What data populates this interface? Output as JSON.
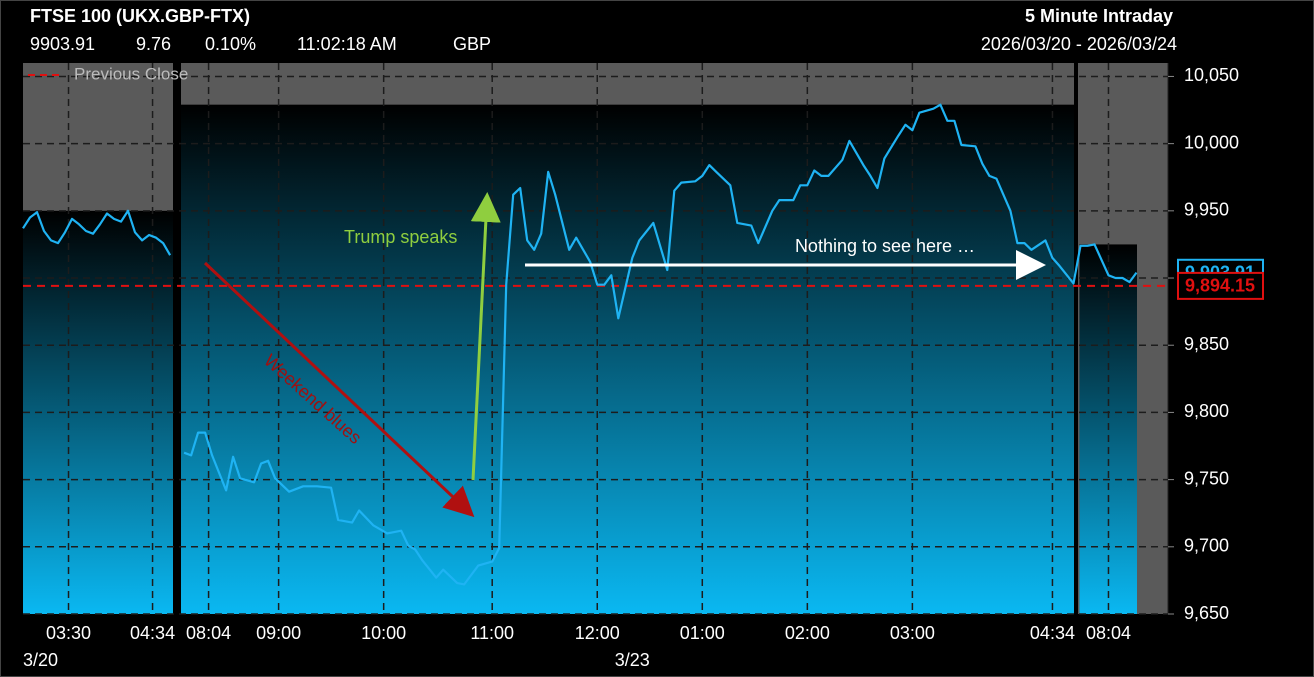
{
  "chart_data": {
    "type": "line",
    "title": "FTSE 100 (UKX.GBP-FTX)",
    "subtitle": "5 Minute Intraday",
    "date_range": "2026/03/20 - 2026/03/24",
    "last_price": {
      "value": 9903.91,
      "label": "9,903.91"
    },
    "change": 9.76,
    "change_pct": {
      "value": 0.1,
      "label": "0.10%"
    },
    "time": "11:02:18 AM",
    "currency": "GBP",
    "color": "#1fb3f3",
    "previous_close": {
      "name": "Previous Close",
      "value": 9894.15,
      "label": "9,894.15",
      "color": "#e01010"
    },
    "x": [
      0,
      1,
      2,
      3,
      4,
      5,
      6,
      7,
      8,
      9,
      10,
      11,
      12,
      13,
      14,
      15,
      16,
      17,
      18,
      19,
      20,
      21,
      22,
      23,
      24,
      25,
      26,
      27,
      29,
      30,
      31,
      33,
      34,
      35,
      36,
      38,
      40,
      42,
      44,
      45,
      47,
      48,
      50,
      52,
      54,
      55,
      56,
      57,
      59,
      60,
      62,
      63,
      65,
      67,
      68,
      69,
      70,
      71,
      72,
      73,
      74,
      75,
      76,
      78,
      79,
      80,
      81,
      82,
      83,
      84,
      85,
      87,
      88,
      90,
      92,
      93,
      94,
      96,
      97,
      98,
      99,
      101,
      102,
      104,
      105,
      107,
      108,
      110,
      111,
      112,
      113,
      114,
      115,
      117,
      118,
      120,
      121,
      122,
      123,
      125,
      126,
      127,
      128,
      130,
      131,
      132,
      133,
      134,
      136,
      137,
      138,
      139,
      141,
      142,
      143,
      144,
      146,
      147,
      148,
      150,
      151,
      152,
      153,
      155,
      156,
      157,
      158,
      159
    ],
    "values": [
      9937,
      9945,
      9949,
      9935,
      9928,
      9926,
      9934,
      9944,
      9940,
      9935,
      9933,
      9940,
      9948,
      9944,
      9942,
      9950,
      9934,
      9928,
      9932,
      9930,
      9926,
      9917,
      null,
      9770,
      9768,
      9785,
      9785,
      9768,
      9742,
      9767,
      9751,
      9748,
      9762,
      9764,
      9751,
      9741,
      9745,
      9745,
      9744,
      9720,
      9718,
      9727,
      9716,
      9710,
      9712,
      9701,
      9698,
      9690,
      9677,
      9683,
      9673,
      9672,
      9686,
      9689,
      9699,
      9895,
      9962,
      9967,
      9928,
      9921,
      9933,
      9979,
      9962,
      9921,
      9930,
      9921,
      9912,
      9895,
      9895,
      9902,
      9870,
      9915,
      9928,
      9941,
      9906,
      9965,
      9971,
      9972,
      9976,
      9984,
      9979,
      9969,
      9941,
      9939,
      9926,
      9950,
      9958,
      9958,
      9969,
      9969,
      9980,
      9976,
      9976,
      9988,
      10002,
      9984,
      9976,
      9967,
      9989,
      10006,
      10014,
      10010,
      10023,
      10026,
      10029,
      10017,
      10017,
      9999,
      9998,
      9985,
      9976,
      9974,
      9950,
      9926,
      9926,
      9921,
      9928,
      9915,
      9909,
      9896,
      9924,
      9924,
      9925,
      9902,
      9900,
      9900,
      9897,
      9904
    ],
    "xlim": [
      0,
      163.5
    ],
    "xticks": [
      {
        "value": 6.5,
        "label": "03:30"
      },
      {
        "value": 18.5,
        "label": "04:34"
      },
      {
        "value": 26.5,
        "label": "08:04"
      },
      {
        "value": 36.5,
        "label": "09:00"
      },
      {
        "value": 51.5,
        "label": "10:00"
      },
      {
        "value": 67,
        "label": "11:00"
      },
      {
        "value": 82,
        "label": "12:00"
      },
      {
        "value": 97,
        "label": "01:00"
      },
      {
        "value": 112,
        "label": "02:00"
      },
      {
        "value": 127,
        "label": "03:00"
      },
      {
        "value": 147,
        "label": "04:34"
      },
      {
        "value": 155,
        "label": "08:04"
      }
    ],
    "date_labels": [
      {
        "value": 0,
        "label": "3/20"
      },
      {
        "value": 87,
        "label": "3/23"
      }
    ],
    "ylim": [
      9650,
      10060
    ],
    "yticks": [
      {
        "value": 9650,
        "label": "9,650"
      },
      {
        "value": 9700,
        "label": "9,700"
      },
      {
        "value": 9750,
        "label": "9,750"
      },
      {
        "value": 9800,
        "label": "9,800"
      },
      {
        "value": 9850,
        "label": "9,850"
      },
      {
        "value": 9900,
        "label": "9,900"
      },
      {
        "value": 9950,
        "label": "9,950"
      },
      {
        "value": 10000,
        "label": "10,000"
      },
      {
        "value": 10050,
        "label": "10,050"
      }
    ],
    "grid": true,
    "annotations": [
      "Trump speaks",
      "Weekend blues",
      "Nothing to see here …"
    ]
  }
}
